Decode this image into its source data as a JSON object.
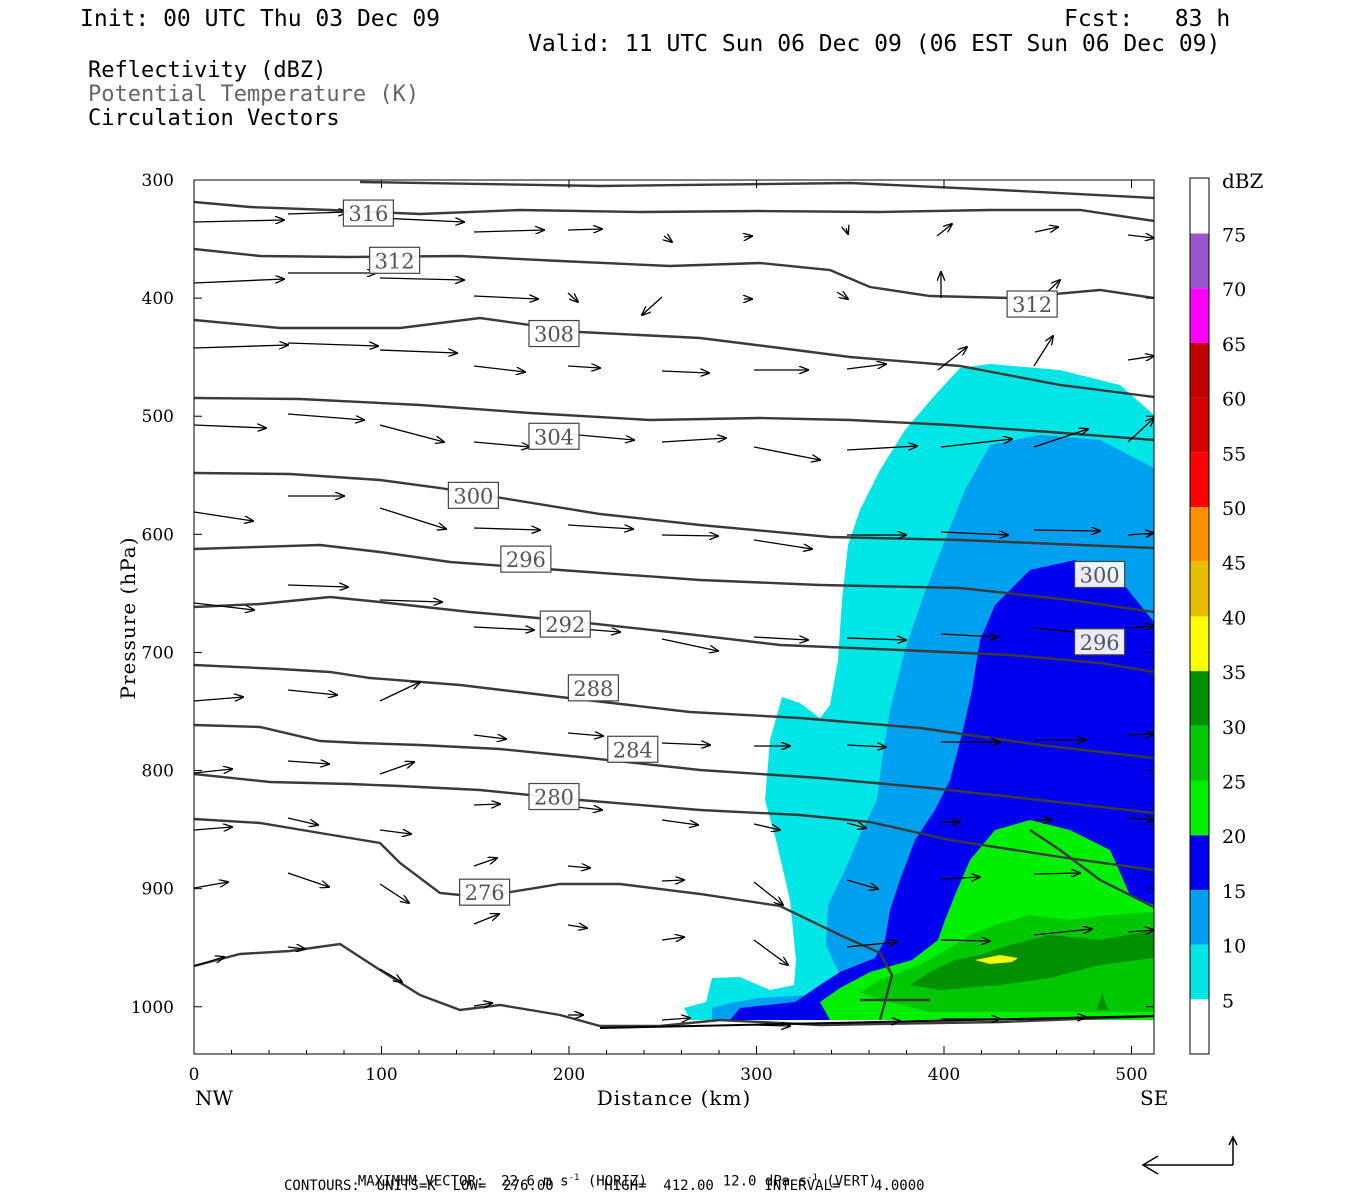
{
  "header": {
    "init": "Init: 00 UTC Thu 03 Dec 09",
    "fcst": "Fcst:   83 h",
    "valid": "Valid: 11 UTC Sun 06 Dec 09 (06 EST Sun 06 Dec 09)",
    "fields": [
      "Reflectivity (dBZ)",
      "Potential Temperature (K)",
      "Circulation Vectors"
    ]
  },
  "footer": {
    "max_vector_label": "MAXIMUM VECTOR:",
    "horiz": "22.6 m s",
    "horiz_unit": "(HORIZ)",
    "vert": "12.0 dPa s",
    "vert_unit": "(VERT)",
    "exponent": "-1",
    "contours_line": "CONTOURS:  UNITS=K  LOW=  276.00      HIGH=  412.00      INTERVAL=    4.0000"
  },
  "chart_data": {
    "type": "contour",
    "xlabel": "Distance (km)",
    "ylabel": "Pressure (hPa)",
    "x_left_label": "NW",
    "x_right_label": "SE",
    "xlim": [
      0,
      512
    ],
    "ylim": [
      1040,
      300
    ],
    "x_ticks": [
      0,
      100,
      200,
      300,
      400,
      500
    ],
    "y_ticks": [
      300,
      400,
      500,
      600,
      700,
      800,
      900,
      1000
    ],
    "colorbar": {
      "unit": "dBZ",
      "levels": [
        5,
        10,
        15,
        20,
        25,
        30,
        35,
        40,
        45,
        50,
        55,
        60,
        65,
        70,
        75
      ],
      "colors": [
        "#00e6e6",
        "#00a0f0",
        "#0000f0",
        "#00f000",
        "#00c800",
        "#009000",
        "#ffff00",
        "#e6c000",
        "#ff9000",
        "#ff0000",
        "#d60000",
        "#c00000",
        "#ff00ff",
        "#9955c9",
        "#ffffff"
      ]
    },
    "theta_contours": [
      {
        "label": "316",
        "x_km": 93,
        "p": 328
      },
      {
        "label": "312",
        "x_km": 107,
        "p": 368
      },
      {
        "label": "312",
        "x_km": 447,
        "p": 405
      },
      {
        "label": "308",
        "x_km": 192,
        "p": 430
      },
      {
        "label": "304",
        "x_km": 192,
        "p": 517
      },
      {
        "label": "300",
        "x_km": 149,
        "p": 567
      },
      {
        "label": "300",
        "x_km": 483,
        "p": 634
      },
      {
        "label": "296",
        "x_km": 177,
        "p": 621
      },
      {
        "label": "296",
        "x_km": 483,
        "p": 691
      },
      {
        "label": "292",
        "x_km": 198,
        "p": 676
      },
      {
        "label": "288",
        "x_km": 213,
        "p": 730
      },
      {
        "label": "284",
        "x_km": 234,
        "p": 782
      },
      {
        "label": "280",
        "x_km": 192,
        "p": 822
      },
      {
        "label": "276",
        "x_km": 155,
        "p": 903
      }
    ],
    "max_vector": {
      "horiz_ms": 22.6,
      "vert_dPas": 12.0
    },
    "contour_units": "K",
    "contour_low": 276.0,
    "contour_high": 412.0,
    "contour_interval": 4.0
  }
}
